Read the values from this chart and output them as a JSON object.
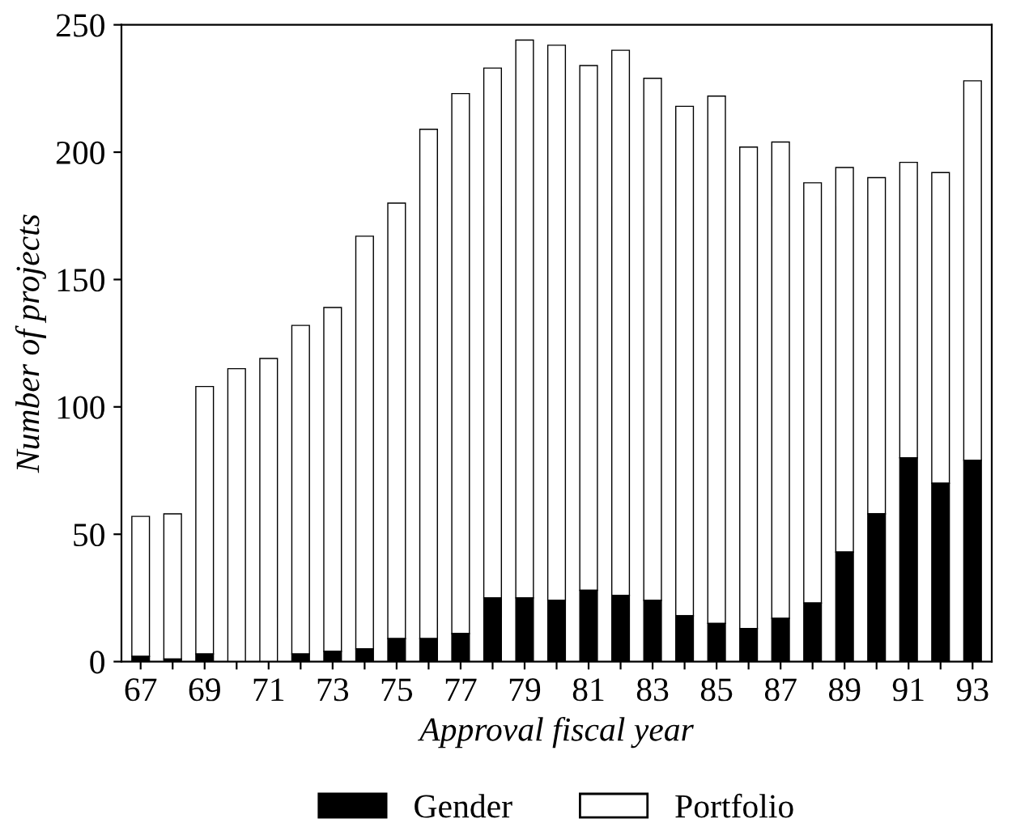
{
  "chart_data": {
    "type": "bar",
    "stacked": true,
    "xlabel": "Approval fiscal year",
    "ylabel": "Number of projects",
    "categories": [
      "67",
      null,
      "69",
      null,
      "71",
      null,
      "73",
      null,
      "75",
      null,
      "77",
      null,
      "79",
      null,
      "81",
      null,
      "83",
      null,
      "85",
      null,
      "87",
      null,
      "89",
      null,
      "91",
      null,
      "93"
    ],
    "series": [
      {
        "name": "Gender",
        "color": "#000000",
        "values": [
          2,
          1,
          3,
          0,
          0,
          3,
          4,
          5,
          9,
          9,
          11,
          25,
          25,
          24,
          28,
          26,
          24,
          18,
          15,
          13,
          17,
          23,
          43,
          58,
          80,
          70,
          79
        ]
      },
      {
        "name": "Portfolio",
        "color": "#ffffff",
        "values": [
          55,
          57,
          105,
          115,
          119,
          129,
          135,
          162,
          171,
          200,
          212,
          208,
          219,
          218,
          206,
          214,
          205,
          200,
          207,
          189,
          187,
          165,
          151,
          132,
          116,
          122,
          149
        ]
      }
    ],
    "ylim": [
      0,
      250
    ],
    "yticks": [
      0,
      50,
      100,
      150,
      200,
      250
    ],
    "grid": false,
    "legend": "bottom"
  }
}
